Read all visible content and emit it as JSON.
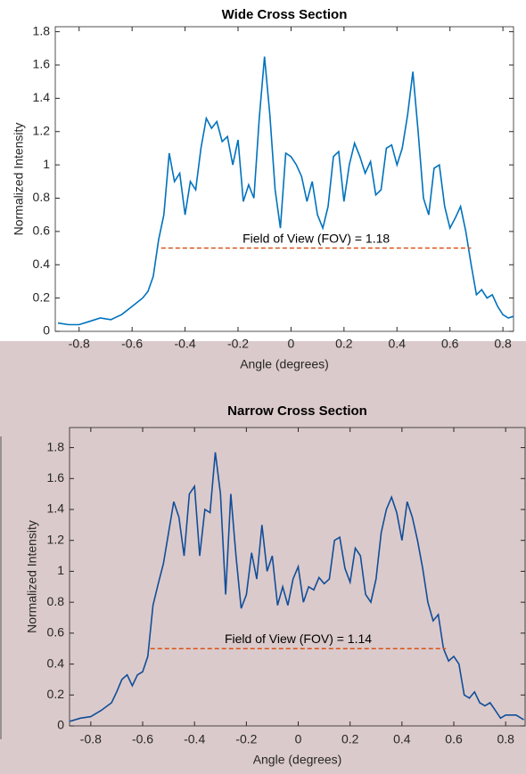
{
  "chart_data": [
    {
      "type": "line",
      "title": "Wide Cross Section",
      "x_label": "Angle (degrees)",
      "y_label": "Normalized Intensity",
      "x": [
        -0.88,
        -0.84,
        -0.8,
        -0.76,
        -0.72,
        -0.68,
        -0.64,
        -0.6,
        -0.56,
        -0.54,
        -0.52,
        -0.5,
        -0.48,
        -0.46,
        -0.44,
        -0.42,
        -0.4,
        -0.38,
        -0.36,
        -0.34,
        -0.32,
        -0.3,
        -0.28,
        -0.26,
        -0.24,
        -0.22,
        -0.2,
        -0.18,
        -0.16,
        -0.14,
        -0.12,
        -0.1,
        -0.08,
        -0.06,
        -0.04,
        -0.02,
        0.0,
        0.02,
        0.04,
        0.06,
        0.08,
        0.1,
        0.12,
        0.14,
        0.16,
        0.18,
        0.2,
        0.22,
        0.24,
        0.26,
        0.28,
        0.3,
        0.32,
        0.34,
        0.36,
        0.38,
        0.4,
        0.42,
        0.44,
        0.46,
        0.48,
        0.5,
        0.52,
        0.54,
        0.56,
        0.58,
        0.6,
        0.62,
        0.64,
        0.66,
        0.68,
        0.7,
        0.72,
        0.74,
        0.76,
        0.78,
        0.8,
        0.82,
        0.84
      ],
      "series": [
        {
          "color": "#0072bd",
          "values": [
            0.05,
            0.04,
            0.04,
            0.06,
            0.08,
            0.07,
            0.1,
            0.15,
            0.2,
            0.24,
            0.33,
            0.55,
            0.7,
            1.07,
            0.9,
            0.95,
            0.7,
            0.9,
            0.85,
            1.1,
            1.28,
            1.22,
            1.26,
            1.14,
            1.17,
            1.0,
            1.15,
            0.78,
            0.88,
            0.8,
            1.28,
            1.65,
            1.3,
            0.85,
            0.62,
            1.07,
            1.05,
            1.0,
            0.93,
            0.78,
            0.9,
            0.7,
            0.62,
            0.75,
            1.05,
            1.08,
            0.78,
            1.0,
            1.13,
            1.05,
            0.95,
            1.02,
            0.82,
            0.85,
            1.1,
            1.12,
            1.0,
            1.1,
            1.3,
            1.56,
            1.2,
            0.8,
            0.7,
            0.98,
            1.0,
            0.75,
            0.62,
            0.68,
            0.75,
            0.6,
            0.4,
            0.22,
            0.25,
            0.2,
            0.22,
            0.15,
            0.1,
            0.08,
            0.09
          ]
        }
      ],
      "fov_line": {
        "x": [
          -0.49,
          0.68
        ],
        "y": 0.5,
        "color": "#d95319"
      },
      "annotation": "Field of View (FOV) = 1.18",
      "xlim": [
        -0.89,
        0.84
      ],
      "ylim": [
        0,
        1.83
      ],
      "xticks": [
        -0.8,
        -0.6,
        -0.4,
        -0.2,
        0,
        0.2,
        0.4,
        0.6,
        0.8
      ],
      "yticks": [
        0,
        0.2,
        0.4,
        0.6,
        0.8,
        1,
        1.2,
        1.4,
        1.6,
        1.8
      ]
    },
    {
      "type": "line",
      "title": "Narrow Cross Section",
      "x_label": "Angle (degrees)",
      "y_label": "Normalized Intensity",
      "x": [
        -0.88,
        -0.84,
        -0.8,
        -0.76,
        -0.72,
        -0.7,
        -0.68,
        -0.66,
        -0.64,
        -0.62,
        -0.6,
        -0.58,
        -0.56,
        -0.54,
        -0.52,
        -0.5,
        -0.48,
        -0.46,
        -0.44,
        -0.42,
        -0.4,
        -0.38,
        -0.36,
        -0.34,
        -0.32,
        -0.3,
        -0.28,
        -0.26,
        -0.24,
        -0.22,
        -0.2,
        -0.18,
        -0.16,
        -0.14,
        -0.12,
        -0.1,
        -0.08,
        -0.06,
        -0.04,
        -0.02,
        0.0,
        0.02,
        0.04,
        0.06,
        0.08,
        0.1,
        0.12,
        0.14,
        0.16,
        0.18,
        0.2,
        0.22,
        0.24,
        0.26,
        0.28,
        0.3,
        0.32,
        0.34,
        0.36,
        0.38,
        0.4,
        0.42,
        0.44,
        0.46,
        0.48,
        0.5,
        0.52,
        0.54,
        0.56,
        0.58,
        0.6,
        0.62,
        0.64,
        0.66,
        0.68,
        0.7,
        0.72,
        0.74,
        0.76,
        0.78,
        0.8,
        0.84,
        0.87
      ],
      "series": [
        {
          "color": "#104e9a",
          "values": [
            0.03,
            0.05,
            0.06,
            0.1,
            0.15,
            0.22,
            0.3,
            0.33,
            0.26,
            0.33,
            0.35,
            0.45,
            0.78,
            0.92,
            1.05,
            1.25,
            1.45,
            1.35,
            1.1,
            1.5,
            1.55,
            1.1,
            1.4,
            1.38,
            1.77,
            1.5,
            0.85,
            1.5,
            1.1,
            0.76,
            0.85,
            1.12,
            0.95,
            1.3,
            1.0,
            1.1,
            0.78,
            0.9,
            0.78,
            0.95,
            1.03,
            0.8,
            0.9,
            0.88,
            0.96,
            0.92,
            0.95,
            1.2,
            1.22,
            1.02,
            0.93,
            1.15,
            1.1,
            0.85,
            0.8,
            0.95,
            1.25,
            1.4,
            1.48,
            1.38,
            1.2,
            1.45,
            1.35,
            1.2,
            1.02,
            0.8,
            0.68,
            0.72,
            0.5,
            0.42,
            0.45,
            0.4,
            0.2,
            0.18,
            0.22,
            0.15,
            0.13,
            0.15,
            0.1,
            0.05,
            0.07,
            0.07,
            0.04
          ]
        }
      ],
      "fov_line": {
        "x": [
          -0.57,
          0.57
        ],
        "y": 0.5,
        "color": "#d95319"
      },
      "annotation": "Field of View (FOV) = 1.14",
      "xlim": [
        -0.882,
        0.875
      ],
      "ylim": [
        0,
        1.93
      ],
      "xticks": [
        -0.8,
        -0.6,
        -0.4,
        -0.2,
        0,
        0.2,
        0.4,
        0.6,
        0.8
      ],
      "yticks": [
        0,
        0.2,
        0.4,
        0.6,
        0.8,
        1,
        1.2,
        1.4,
        1.6,
        1.8
      ]
    }
  ]
}
